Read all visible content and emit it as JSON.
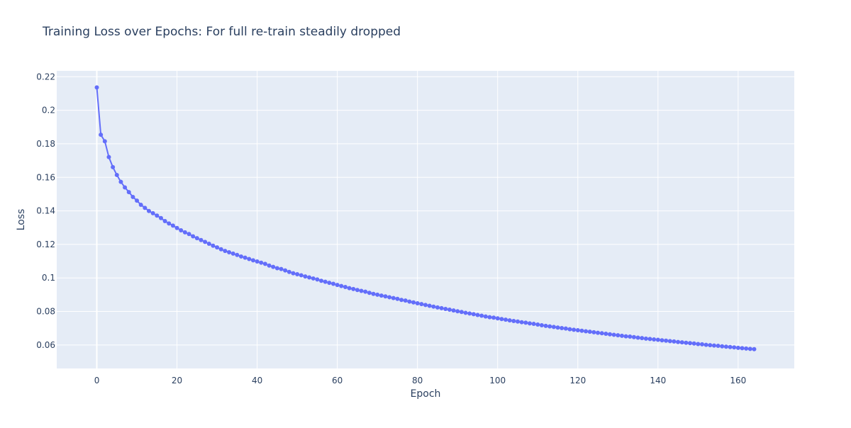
{
  "chart_data": {
    "type": "line",
    "title": "Training Loss over Epochs: For full re-train steadily dropped",
    "xlabel": "Epoch",
    "ylabel": "Loss",
    "xlim": [
      -10,
      174
    ],
    "ylim": [
      0.046,
      0.2235
    ],
    "x_ticks": [
      0,
      20,
      40,
      60,
      80,
      100,
      120,
      140,
      160
    ],
    "x_tick_labels": [
      "0",
      "20",
      "40",
      "60",
      "80",
      "100",
      "120",
      "140",
      "160"
    ],
    "y_ticks": [
      0.06,
      0.08,
      0.1,
      0.12,
      0.14,
      0.16,
      0.18,
      0.2,
      0.22
    ],
    "y_tick_labels": [
      "0.06",
      "0.08",
      "0.1",
      "0.12",
      "0.14",
      "0.16",
      "0.18",
      "0.2",
      "0.22"
    ],
    "grid": true,
    "legend": "none",
    "colors": {
      "plot_bg": "#e5ecf6",
      "grid": "#ffffff",
      "series": "#636efa",
      "text": "#2a3f5f"
    },
    "series": [
      {
        "x": [
          0,
          1,
          2,
          3,
          4,
          5,
          6,
          7,
          8,
          9,
          10,
          11,
          12,
          13,
          14,
          15,
          16,
          17,
          18,
          19,
          20,
          21,
          22,
          23,
          24,
          25,
          26,
          27,
          28,
          29,
          30,
          31,
          32,
          33,
          34,
          35,
          36,
          37,
          38,
          39,
          40,
          41,
          42,
          43,
          44,
          45,
          46,
          47,
          48,
          49,
          50,
          51,
          52,
          53,
          54,
          55,
          56,
          57,
          58,
          59,
          60,
          61,
          62,
          63,
          64,
          65,
          66,
          67,
          68,
          69,
          70,
          71,
          72,
          73,
          74,
          75,
          76,
          77,
          78,
          79,
          80,
          81,
          82,
          83,
          84,
          85,
          86,
          87,
          88,
          89,
          90,
          91,
          92,
          93,
          94,
          95,
          96,
          97,
          98,
          99,
          100,
          101,
          102,
          103,
          104,
          105,
          106,
          107,
          108,
          109,
          110,
          111,
          112,
          113,
          114,
          115,
          116,
          117,
          118,
          119,
          120,
          121,
          122,
          123,
          124,
          125,
          126,
          127,
          128,
          129,
          130,
          131,
          132,
          133,
          134,
          135,
          136,
          137,
          138,
          139,
          140,
          141,
          142,
          143,
          144,
          145,
          146,
          147,
          148,
          149,
          150,
          151,
          152,
          153,
          154,
          155,
          156,
          157,
          158,
          159,
          160,
          161,
          162,
          163,
          164
        ],
        "values": [
          0.2136,
          0.1854,
          0.1815,
          0.1721,
          0.1661,
          0.1614,
          0.1573,
          0.154,
          0.1512,
          0.1483,
          0.1461,
          0.1436,
          0.1418,
          0.1399,
          0.1386,
          0.1372,
          0.1357,
          0.1339,
          0.1325,
          0.1312,
          0.1298,
          0.1284,
          0.1272,
          0.1262,
          0.1248,
          0.1237,
          0.1226,
          0.1215,
          0.1204,
          0.1192,
          0.1182,
          0.1171,
          0.1161,
          0.1153,
          0.1145,
          0.1137,
          0.1128,
          0.1121,
          0.1113,
          0.1105,
          0.1098,
          0.1091,
          0.1084,
          0.1074,
          0.1066,
          0.1058,
          0.1053,
          0.1045,
          0.1036,
          0.1028,
          0.1022,
          0.1016,
          0.1009,
          0.1003,
          0.0997,
          0.0991,
          0.0983,
          0.0977,
          0.0971,
          0.0965,
          0.0958,
          0.0952,
          0.0946,
          0.0939,
          0.0934,
          0.0928,
          0.0923,
          0.0918,
          0.0911,
          0.0905,
          0.09,
          0.0895,
          0.089,
          0.0885,
          0.088,
          0.0875,
          0.0869,
          0.0865,
          0.0859,
          0.0854,
          0.0849,
          0.0844,
          0.0839,
          0.0834,
          0.0829,
          0.0824,
          0.082,
          0.0815,
          0.0811,
          0.0806,
          0.0801,
          0.0797,
          0.0792,
          0.0788,
          0.0784,
          0.0779,
          0.0775,
          0.077,
          0.0766,
          0.0763,
          0.0759,
          0.0755,
          0.0751,
          0.0747,
          0.0743,
          0.074,
          0.0736,
          0.0733,
          0.0729,
          0.0726,
          0.0722,
          0.0718,
          0.0714,
          0.0711,
          0.0708,
          0.0704,
          0.0701,
          0.0698,
          0.0694,
          0.0691,
          0.0688,
          0.0685,
          0.0682,
          0.0679,
          0.0676,
          0.0673,
          0.067,
          0.0667,
          0.0664,
          0.0661,
          0.0658,
          0.0655,
          0.0652,
          0.065,
          0.0647,
          0.0644,
          0.0641,
          0.0638,
          0.0636,
          0.0633,
          0.0631,
          0.0628,
          0.0626,
          0.0623,
          0.0621,
          0.0618,
          0.0616,
          0.0613,
          0.0611,
          0.0609,
          0.0606,
          0.0604,
          0.0601,
          0.0599,
          0.0597,
          0.0595,
          0.0592,
          0.059,
          0.0588,
          0.0586,
          0.0583,
          0.0581,
          0.0579,
          0.0577,
          0.0575
        ]
      }
    ]
  }
}
